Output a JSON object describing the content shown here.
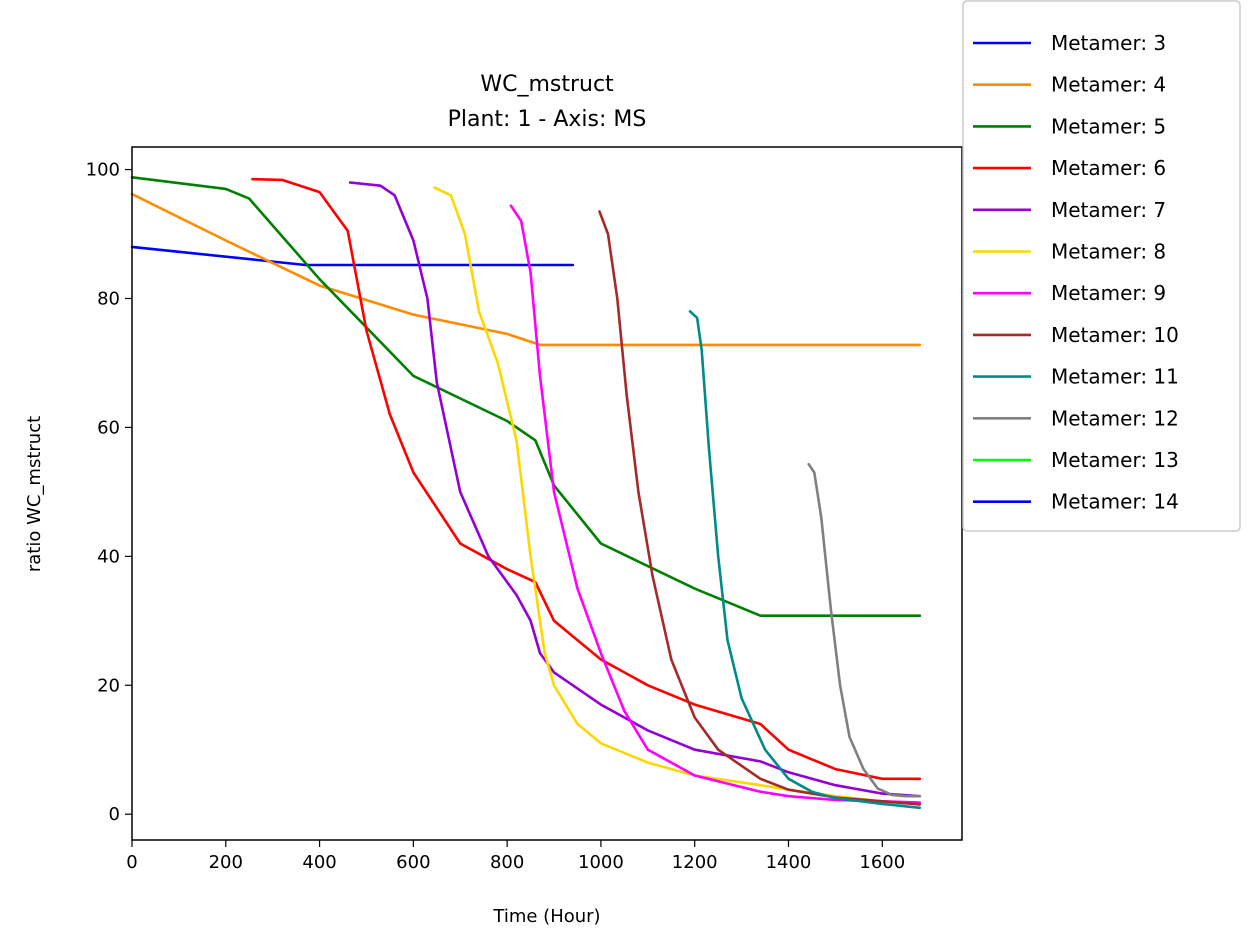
{
  "chart_data": {
    "type": "line",
    "title": "WC_mstruct",
    "subtitle": "Plant: 1 - Axis: MS",
    "xlabel": "Time (Hour)",
    "ylabel": "ratio WC_mstruct",
    "xlim": [
      0,
      1770
    ],
    "ylim": [
      -4,
      103.5
    ],
    "xticks": [
      0,
      200,
      400,
      600,
      800,
      1000,
      1200,
      1400,
      1600
    ],
    "yticks": [
      0,
      20,
      40,
      60,
      80,
      100
    ],
    "grid": false,
    "legend_position": "outside-top-right",
    "series": [
      {
        "name": "Metamer: 3",
        "color": "#0000ff",
        "points": [
          [
            0,
            88
          ],
          [
            940,
            85.2
          ]
        ],
        "x": [
          0,
          370,
          940
        ],
        "y": [
          88,
          85.2,
          85.2
        ]
      },
      {
        "name": "Metamer: 4",
        "color": "#ff8c00",
        "x": [
          0,
          200,
          400,
          600,
          800,
          870,
          1680
        ],
        "y": [
          96.2,
          89,
          82,
          77.5,
          74.5,
          72.8,
          72.8
        ]
      },
      {
        "name": "Metamer: 5",
        "color": "#008000",
        "x": [
          0,
          200,
          250,
          400,
          600,
          800,
          860,
          900,
          1000,
          1200,
          1340,
          1680
        ],
        "y": [
          98.8,
          97,
          95.5,
          83,
          68,
          61,
          58,
          51,
          42,
          35,
          30.8,
          30.8
        ]
      },
      {
        "name": "Metamer: 6",
        "color": "#ff0000",
        "x": [
          257,
          320,
          400,
          430,
          460,
          500,
          550,
          600,
          700,
          800,
          860,
          900,
          1000,
          1100,
          1200,
          1340,
          1400,
          1500,
          1600,
          1680
        ],
        "y": [
          98.5,
          98.4,
          96.5,
          93.5,
          90.5,
          75,
          62,
          53,
          42,
          38,
          36,
          30,
          24,
          20,
          17,
          14,
          10,
          7,
          5.5,
          5.5
        ]
      },
      {
        "name": "Metamer: 7",
        "color": "#9400d3",
        "x": [
          465,
          530,
          560,
          600,
          630,
          650,
          700,
          760,
          820,
          850,
          870,
          900,
          1000,
          1100,
          1200,
          1340,
          1400,
          1500,
          1600,
          1680
        ],
        "y": [
          98,
          97.5,
          96,
          89,
          80,
          67,
          50,
          40,
          34,
          30,
          25,
          22,
          17,
          13,
          10,
          8.2,
          6.5,
          4.5,
          3.2,
          2.8
        ]
      },
      {
        "name": "Metamer: 8",
        "color": "#ffd700",
        "x": [
          645,
          680,
          710,
          740,
          780,
          820,
          850,
          880,
          900,
          950,
          1000,
          1100,
          1200,
          1340,
          1400,
          1500,
          1600,
          1680
        ],
        "y": [
          97.2,
          96,
          90,
          78,
          70,
          58,
          40,
          25,
          20,
          14,
          11,
          8,
          6,
          4.5,
          3.8,
          2.8,
          2.0,
          1.6
        ]
      },
      {
        "name": "Metamer: 9",
        "color": "#ff00ff",
        "x": [
          808,
          830,
          850,
          870,
          900,
          950,
          1000,
          1050,
          1100,
          1200,
          1340,
          1400,
          1500,
          1600,
          1680
        ],
        "y": [
          94.4,
          92,
          84,
          68,
          50,
          35,
          25,
          16,
          10,
          6,
          3.5,
          2.8,
          2.2,
          2.0,
          1.8
        ]
      },
      {
        "name": "Metamer: 10",
        "color": "#a52a2a",
        "x": [
          997,
          1015,
          1035,
          1055,
          1080,
          1110,
          1150,
          1200,
          1250,
          1340,
          1400,
          1500,
          1600,
          1680
        ],
        "y": [
          93.5,
          90,
          80,
          65,
          50,
          37,
          24,
          15,
          10,
          5.5,
          3.8,
          2.6,
          2.0,
          1.5
        ]
      },
      {
        "name": "Metamer: 11",
        "color": "#008b8b",
        "x": [
          1190,
          1205,
          1215,
          1230,
          1250,
          1270,
          1300,
          1350,
          1400,
          1450,
          1500,
          1600,
          1680
        ],
        "y": [
          78,
          77,
          72,
          57,
          40,
          27,
          18,
          10,
          5.5,
          3.5,
          2.5,
          1.6,
          1.0
        ]
      },
      {
        "name": "Metamer: 12",
        "color": "#808080",
        "x": [
          1443,
          1455,
          1470,
          1490,
          1510,
          1530,
          1560,
          1590,
          1620,
          1650,
          1680
        ],
        "y": [
          54.3,
          53,
          46,
          32,
          20,
          12,
          7,
          4,
          3.0,
          2.8,
          2.8
        ]
      },
      {
        "name": "Metamer: 13",
        "color": "#00ff00",
        "x": [],
        "y": []
      },
      {
        "name": "Metamer: 14",
        "color": "#0000ff",
        "x": [],
        "y": []
      }
    ]
  }
}
